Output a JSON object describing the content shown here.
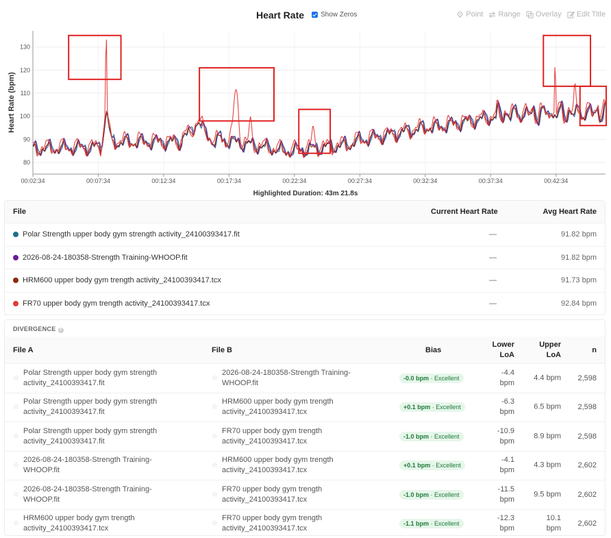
{
  "header": {
    "title": "Heart Rate",
    "show_zeros_label": "Show Zeros",
    "tools": [
      {
        "label": "Point",
        "icon": "pin-icon"
      },
      {
        "label": "Range",
        "icon": "arrows-icon"
      },
      {
        "label": "Overlay",
        "icon": "overlay-icon"
      },
      {
        "label": "Edit Title",
        "icon": "edit-icon"
      }
    ]
  },
  "chart_data": {
    "type": "line",
    "ylabel": "Heart Rate (bpm)",
    "xlabel": "",
    "ylim": [
      75,
      137
    ],
    "yticks": [
      80,
      90,
      100,
      110,
      120,
      130
    ],
    "xtick_labels": [
      "00:02:34",
      "00:07:34",
      "00:12:34",
      "00:17:34",
      "00:22:34",
      "00:27:34",
      "00:32:34",
      "00:37:34",
      "00:42:34"
    ],
    "x_start_min": 2.567,
    "x_end_min": 46.35,
    "grid": true,
    "series": [
      {
        "name": "Polar Strength upper body gym strength activity_24100393417.fit",
        "color": "#1f6f8b"
      },
      {
        "name": "2026-08-24-180358-Strength Training-WHOOP.fit",
        "color": "#6a1b9a"
      },
      {
        "name": "HRM600 upper body gym trength activity_24100393417.tcx",
        "color": "#8b2c0e"
      },
      {
        "name": "FR70 upper body gym trength activity_24100393417.tcx",
        "color": "#e53935"
      }
    ],
    "highlight_boxes": [
      {
        "t_start": 5.3,
        "t_end": 9.3,
        "y_low": 116,
        "y_high": 135
      },
      {
        "t_start": 15.3,
        "t_end": 21.0,
        "y_low": 98,
        "y_high": 121
      },
      {
        "t_start": 22.9,
        "t_end": 25.3,
        "y_low": 84,
        "y_high": 103
      },
      {
        "t_start": 41.6,
        "t_end": 45.2,
        "y_low": 113,
        "y_high": 135
      },
      {
        "t_start": 44.4,
        "t_end": 46.4,
        "y_low": 96,
        "y_high": 113
      }
    ]
  },
  "duration_text": "Highlighted Duration: 43m 21.8s",
  "files_table": {
    "headers": [
      "File",
      "Current Heart Rate",
      "Avg Heart Rate"
    ],
    "rows": [
      {
        "name": "Polar Strength upper body gym strength activity_24100393417.fit",
        "color": "#1f6f8b",
        "current": "—",
        "avg": "91.82 bpm"
      },
      {
        "name": "2026-08-24-180358-Strength Training-WHOOP.fit",
        "color": "#6a1b9a",
        "current": "—",
        "avg": "91.82 bpm"
      },
      {
        "name": "HRM600 upper body gym trength activity_24100393417.tcx",
        "color": "#8b2c0e",
        "current": "—",
        "avg": "91.73 bpm"
      },
      {
        "name": "FR70 upper body gym trength activity_24100393417.tcx",
        "color": "#e53935",
        "current": "—",
        "avg": "92.84 bpm"
      }
    ]
  },
  "divergence": {
    "title": "DIVERGENCE",
    "help_icon": "?",
    "headers": {
      "file_a": "File A",
      "file_b": "File B",
      "bias": "Bias",
      "lower": "Lower\nLoA",
      "upper": "Upper\nLoA",
      "n": "n"
    },
    "rows": [
      {
        "a": "Polar Strength upper body gym strength\nactivity_24100393417.fit",
        "b": "2026-08-24-180358-Strength Training-\nWHOOP.fit",
        "bias": "-0.0 bpm",
        "rating": "· Excellent",
        "lower": "-4.4\nbpm",
        "upper": "4.4 bpm",
        "n": "2,598"
      },
      {
        "a": "Polar Strength upper body gym strength\nactivity_24100393417.fit",
        "b": "HRM600 upper body gym trength\nactivity_24100393417.tcx",
        "bias": "+0.1 bpm",
        "rating": "· Excellent",
        "lower": "-6.3\nbpm",
        "upper": "6.5 bpm",
        "n": "2,598"
      },
      {
        "a": "Polar Strength upper body gym strength\nactivity_24100393417.fit",
        "b": "FR70 upper body gym trength\nactivity_24100393417.tcx",
        "bias": "-1.0 bpm",
        "rating": "· Excellent",
        "lower": "-10.9\nbpm",
        "upper": "8.9 bpm",
        "n": "2,598"
      },
      {
        "a": "2026-08-24-180358-Strength Training-\nWHOOP.fit",
        "b": "HRM600 upper body gym trength\nactivity_24100393417.tcx",
        "bias": "+0.1 bpm",
        "rating": "· Excellent",
        "lower": "-4.1\nbpm",
        "upper": "4.3 bpm",
        "n": "2,602"
      },
      {
        "a": "2026-08-24-180358-Strength Training-\nWHOOP.fit",
        "b": "FR70 upper body gym trength\nactivity_24100393417.tcx",
        "bias": "-1.0 bpm",
        "rating": "· Excellent",
        "lower": "-11.5\nbpm",
        "upper": "9.5 bpm",
        "n": "2,602"
      },
      {
        "a": "HRM600 upper body gym trength\nactivity_24100393417.tcx",
        "b": "FR70 upper body gym trength\nactivity_24100393417.tcx",
        "bias": "-1.1 bpm",
        "rating": "· Excellent",
        "lower": "-12.3\nbpm",
        "upper": "10.1\nbpm",
        "n": "2,602"
      }
    ]
  }
}
